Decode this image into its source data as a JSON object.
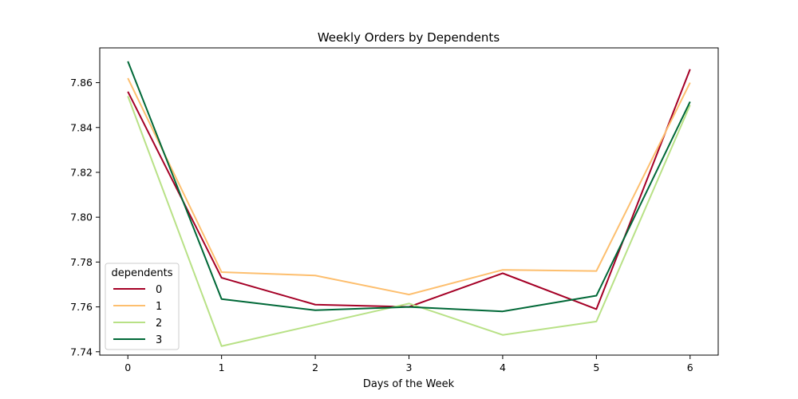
{
  "chart_data": {
    "type": "line",
    "title": "Weekly Orders by Dependents",
    "xlabel": "Days of the Week",
    "ylabel": "",
    "x": [
      0,
      1,
      2,
      3,
      4,
      5,
      6
    ],
    "xticks": [
      "0",
      "1",
      "2",
      "3",
      "4",
      "5",
      "6"
    ],
    "xlim": [
      -0.3,
      6.3
    ],
    "yticks": [
      "7.74",
      "7.76",
      "7.78",
      "7.80",
      "7.82",
      "7.84",
      "7.86"
    ],
    "ytick_values": [
      7.74,
      7.76,
      7.78,
      7.8,
      7.82,
      7.84,
      7.86
    ],
    "ylim": [
      7.7385,
      7.8755
    ],
    "grid": false,
    "legend_title": "dependents",
    "legend_position": "lower-left",
    "series": [
      {
        "name": "0",
        "color": "#a50026",
        "values": [
          7.856,
          7.773,
          7.761,
          7.76,
          7.775,
          7.759,
          7.866
        ]
      },
      {
        "name": "1",
        "color": "#fdbf6f",
        "values": [
          7.862,
          7.7755,
          7.774,
          7.7655,
          7.7765,
          7.776,
          7.86
        ]
      },
      {
        "name": "2",
        "color": "#b8e186",
        "values": [
          7.854,
          7.7425,
          7.752,
          7.7615,
          7.7475,
          7.7535,
          7.85
        ]
      },
      {
        "name": "3",
        "color": "#006837",
        "values": [
          7.8695,
          7.7635,
          7.7585,
          7.76,
          7.758,
          7.765,
          7.8515
        ]
      }
    ]
  }
}
